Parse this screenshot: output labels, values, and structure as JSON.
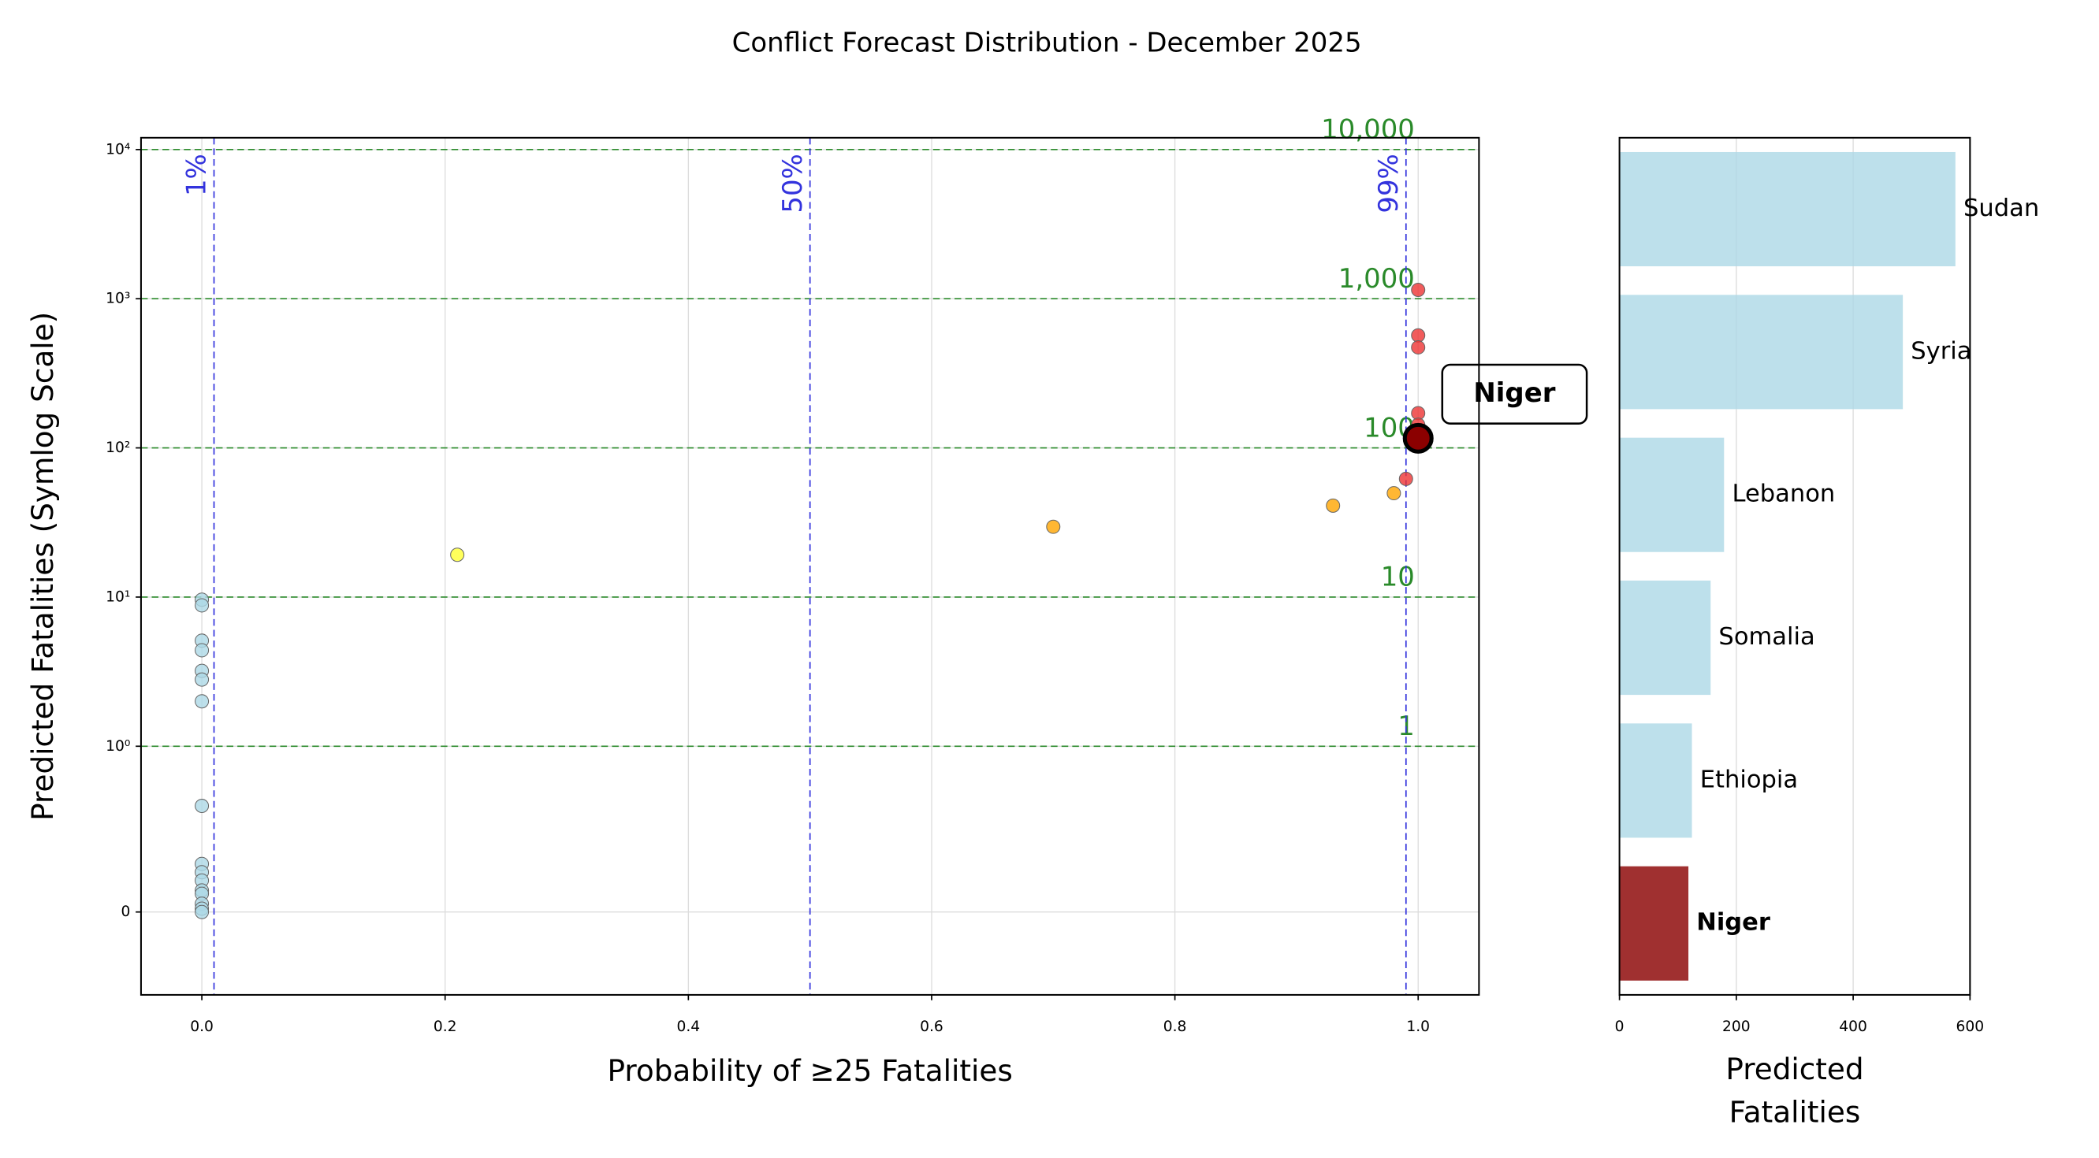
{
  "chart_data": [
    {
      "type": "scatter",
      "title": "Conflict Forecast Distribution - December 2025",
      "xlabel": "Probability of ≥25 Fatalities",
      "ylabel": "Predicted Fatalities (Symlog Scale)",
      "yscale": "symlog",
      "linthresh": 1,
      "grid": true,
      "xlim": [
        -0.05,
        1.05
      ],
      "xticks": [
        {
          "value": 0,
          "label": "0.0"
        },
        0.2,
        0.4,
        0.6,
        0.8,
        {
          "value": 1,
          "label": "1.0"
        }
      ],
      "ylim": [
        -0.5,
        12000
      ],
      "yticks": [
        0,
        {
          "value": 1,
          "label": "10⁰"
        },
        {
          "value": 10,
          "label": "10¹"
        },
        {
          "value": 100,
          "label": "10²"
        },
        {
          "value": 1000,
          "label": "10³"
        },
        {
          "value": 10000,
          "label": "10⁴"
        }
      ],
      "vlines": [
        {
          "value": 0.01,
          "label": "1%"
        },
        {
          "value": 0.5,
          "label": "50%"
        },
        {
          "value": 0.99,
          "label": "99%"
        }
      ],
      "vline_color": "#3333dd",
      "hlines": [
        {
          "value": 1,
          "label": "1"
        },
        {
          "value": 10,
          "label": "10"
        },
        {
          "value": 100,
          "label": "100"
        },
        {
          "value": 1000,
          "label": "1,000"
        },
        {
          "value": 10000,
          "label": "10,000"
        }
      ],
      "hline_color": "#2a8a2a",
      "series": [
        {
          "color": "#add8e6",
          "x": [
            0,
            0,
            0,
            0,
            0,
            0,
            0,
            0,
            0,
            0,
            0,
            0,
            0,
            0,
            0,
            0
          ],
          "values": [
            9.6,
            8.8,
            5.1,
            4.4,
            3.2,
            2.8,
            2.0,
            0.64,
            0.29,
            0.24,
            0.19,
            0.13,
            0.11,
            0.05,
            0.02,
            0
          ]
        },
        {
          "color": "#ffff33",
          "x": [
            0.21
          ],
          "values": [
            19.2
          ]
        },
        {
          "color": "#ffa500",
          "x": [
            0.7,
            0.93,
            0.98
          ],
          "values": [
            29.6,
            41,
            49.7
          ]
        },
        {
          "color": "#ee3333",
          "x": [
            0.99,
            1.0,
            1.0,
            1.0,
            1.0,
            1.0
          ],
          "values": [
            62,
            1146,
            568,
            472,
            171,
            143
          ]
        },
        {
          "color": "#8b0000",
          "x": [
            1.0
          ],
          "values": [
            116
          ],
          "label": "Niger",
          "highlight": true
        }
      ]
    },
    {
      "type": "bar",
      "orientation": "horizontal",
      "xlabel": [
        "Predicted",
        "Fatalities"
      ],
      "categories": [
        "Sudan",
        "Syria",
        "Lebanon",
        "Somalia",
        "Ethiopia",
        "Niger"
      ],
      "values": [
        575,
        485,
        179,
        156,
        124,
        118
      ],
      "colors": [
        "#add8e6",
        "#add8e6",
        "#add8e6",
        "#add8e6",
        "#add8e6",
        "#a03030"
      ],
      "highlight_index": 5,
      "xlim": [
        0,
        600
      ],
      "xticks": [
        0,
        200,
        400,
        600
      ],
      "grid": true
    }
  ]
}
